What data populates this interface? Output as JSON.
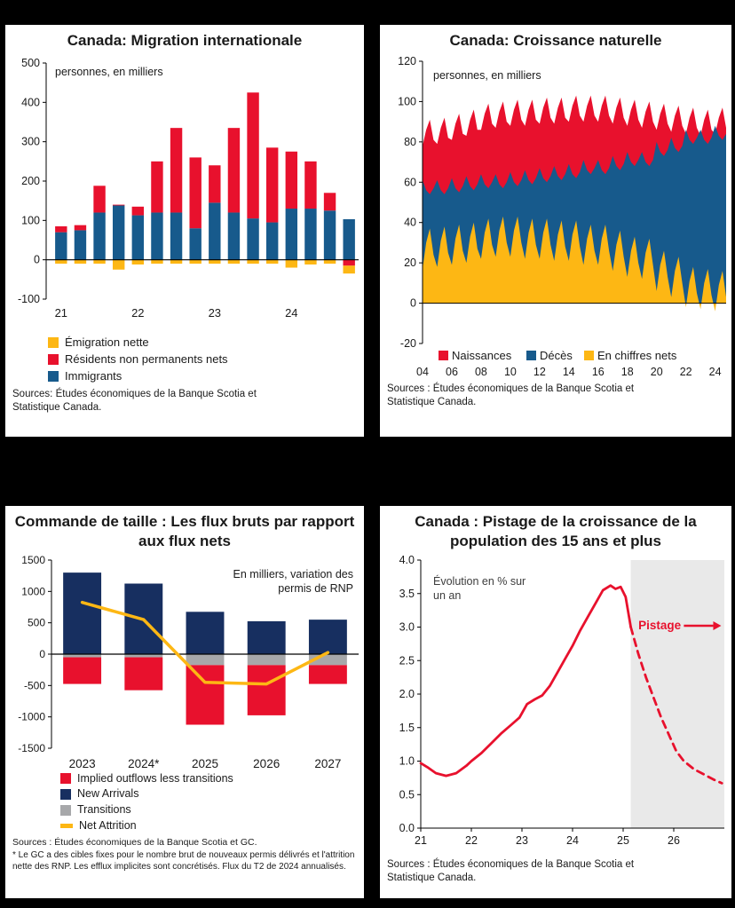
{
  "colors": {
    "background": "#000000",
    "panel": "#ffffff",
    "text": "#1a1a1a",
    "red": "#e8112d",
    "blue": "#175a8c",
    "navy": "#172f60",
    "yellow": "#fdb714",
    "gray": "#a7a8aa",
    "shade": "#e9e9e9"
  },
  "chart_data": [
    {
      "type": "bar",
      "title": "Canada: Migration internationale",
      "unit_label": "personnes, en milliers",
      "ylim": [
        -100,
        500
      ],
      "yticks": [
        500,
        400,
        300,
        200,
        100,
        0,
        -100
      ],
      "xtick_labels": [
        "21",
        "22",
        "23",
        "24"
      ],
      "series": [
        {
          "name": "Immigrants",
          "color": "blue",
          "values": [
            70,
            75,
            120,
            138,
            113,
            120,
            120,
            80,
            145,
            120,
            105,
            95,
            130,
            130,
            125,
            103
          ]
        },
        {
          "name": "Résidents non permanents nets",
          "color": "red",
          "values": [
            15,
            13,
            68,
            2,
            22,
            130,
            215,
            180,
            95,
            215,
            320,
            190,
            145,
            120,
            45,
            -15
          ]
        },
        {
          "name": "Émigration nette",
          "color": "yellow",
          "values": [
            -10,
            -10,
            -10,
            -25,
            -12,
            -10,
            -10,
            -10,
            -10,
            -10,
            -10,
            -10,
            -20,
            -12,
            -10,
            -20
          ]
        }
      ],
      "legend": [
        {
          "label": "Émigration nette",
          "color": "yellow",
          "shape": "square"
        },
        {
          "label": "Résidents non permanents nets",
          "color": "red",
          "shape": "square"
        },
        {
          "label": "Immigrants",
          "color": "blue",
          "shape": "square"
        }
      ],
      "sources": "Sources: Études économiques de la Banque Scotia et Statistique Canada."
    },
    {
      "type": "area",
      "title": "Canada: Croissance naturelle",
      "unit_label": "personnes, en milliers",
      "ylim": [
        -20,
        120
      ],
      "yticks": [
        120,
        100,
        80,
        60,
        40,
        20,
        0,
        -20
      ],
      "x_start": 2004,
      "x_step": 0.25,
      "xtick_years": [
        2004,
        2006,
        2008,
        2010,
        2012,
        2014,
        2016,
        2018,
        2020,
        2022,
        2024
      ],
      "xtick_labels": [
        "04",
        "06",
        "08",
        "10",
        "12",
        "14",
        "16",
        "18",
        "20",
        "22",
        "24"
      ],
      "series": [
        {
          "name": "Naissances",
          "color": "red",
          "values": [
            78,
            86,
            91,
            81,
            79,
            87,
            92,
            82,
            81,
            89,
            94,
            84,
            83,
            91,
            96,
            86,
            86,
            94,
            99,
            89,
            87,
            95,
            100,
            90,
            88,
            96,
            101,
            91,
            88,
            96,
            101,
            91,
            89,
            97,
            102,
            92,
            89,
            97,
            102,
            92,
            90,
            98,
            103,
            93,
            90,
            98,
            103,
            93,
            90,
            98,
            103,
            93,
            89,
            97,
            102,
            92,
            88,
            96,
            101,
            91,
            87,
            95,
            100,
            90,
            86,
            94,
            99,
            89,
            85,
            93,
            98,
            88,
            84,
            92,
            97,
            87,
            83,
            91,
            96,
            86,
            84,
            92,
            97,
            87
          ]
        },
        {
          "name": "Décès",
          "color": "blue",
          "values": [
            61,
            56,
            54,
            57,
            61,
            56,
            54,
            57,
            62,
            57,
            55,
            58,
            63,
            58,
            56,
            59,
            64,
            59,
            57,
            60,
            64,
            59,
            57,
            60,
            65,
            60,
            58,
            61,
            66,
            61,
            59,
            62,
            67,
            62,
            60,
            63,
            68,
            63,
            61,
            64,
            69,
            64,
            62,
            65,
            71,
            66,
            64,
            67,
            71,
            66,
            64,
            67,
            73,
            68,
            66,
            69,
            75,
            70,
            68,
            71,
            75,
            70,
            68,
            71,
            80,
            75,
            73,
            76,
            82,
            77,
            75,
            78,
            86,
            81,
            79,
            82,
            86,
            81,
            79,
            82,
            88,
            83,
            81,
            84
          ]
        },
        {
          "name": "En chiffres nets",
          "color": "yellow",
          "values": [
            17,
            30,
            37,
            24,
            18,
            31,
            38,
            25,
            19,
            32,
            39,
            26,
            20,
            33,
            40,
            27,
            22,
            35,
            42,
            29,
            23,
            36,
            43,
            30,
            23,
            36,
            43,
            30,
            22,
            35,
            42,
            29,
            22,
            35,
            42,
            29,
            21,
            34,
            41,
            28,
            21,
            34,
            41,
            28,
            19,
            32,
            39,
            26,
            19,
            32,
            39,
            26,
            16,
            29,
            36,
            23,
            13,
            26,
            33,
            20,
            12,
            25,
            32,
            19,
            6,
            19,
            26,
            13,
            3,
            16,
            23,
            10,
            -2,
            11,
            18,
            5,
            -3,
            10,
            17,
            4,
            -4,
            9,
            16,
            3
          ]
        }
      ],
      "sources": "Sources : Études économiques de la Banque Scotia et Statistique Canada."
    },
    {
      "type": "bar-line",
      "title": "Commande de taille : Les flux bruts par rapport aux flux nets",
      "annotation": [
        "En milliers, variation des",
        "permis de RNP"
      ],
      "ylim": [
        -1500,
        1500
      ],
      "yticks": [
        1500,
        1000,
        500,
        0,
        -500,
        -1000,
        -1500
      ],
      "categories": [
        "2023",
        "2024*",
        "2025",
        "2026",
        "2027"
      ],
      "series": [
        {
          "name": "New Arrivals",
          "color": "navy",
          "values": [
            1300,
            1125,
            675,
            525,
            550
          ]
        },
        {
          "name": "Transitions",
          "color": "gray",
          "values": [
            -50,
            -50,
            -175,
            -175,
            -175
          ]
        },
        {
          "name": "Implied outflows less transitions",
          "color": "red",
          "values": [
            -425,
            -525,
            -950,
            -800,
            -300
          ]
        }
      ],
      "line": {
        "name": "Net Attrition",
        "color": "yellow",
        "values": [
          825,
          550,
          -450,
          -475,
          25
        ]
      },
      "legend": [
        {
          "label": "Implied outflows less transitions",
          "color": "red",
          "shape": "square"
        },
        {
          "label": "New Arrivals",
          "color": "navy",
          "shape": "square"
        },
        {
          "label": "Transitions",
          "color": "gray",
          "shape": "square"
        },
        {
          "label": "Net Attrition",
          "color": "yellow",
          "shape": "line"
        }
      ],
      "sources": "Sources : Études économiques de la Banque Scotia et GC.",
      "footnote": "* Le GC a des cibles fixes pour le nombre brut de nouveaux permis délivrés et l'attrition nette des RNP. Les efflux implicites sont concrétisés. Flux du T2 de 2024 annualisés."
    },
    {
      "type": "line",
      "title": "Canada : Pistage de la croissance de la population des 15 ans et plus",
      "annotation": [
        "Évolution en % sur",
        "un an"
      ],
      "ylim": [
        0,
        4
      ],
      "ytick_labels": [
        "4.0",
        "3.5",
        "3.0",
        "2.5",
        "2.0",
        "1.5",
        "1.0",
        "0.5",
        "0.0"
      ],
      "xlim": [
        2021,
        2027
      ],
      "xtick_labels": [
        "21",
        "22",
        "23",
        "24",
        "25",
        "26"
      ],
      "forecast_start": 2025.15,
      "forecast_label": "Pistage",
      "solid": [
        [
          2021.0,
          0.97
        ],
        [
          2021.15,
          0.9
        ],
        [
          2021.3,
          0.82
        ],
        [
          2021.5,
          0.78
        ],
        [
          2021.7,
          0.82
        ],
        [
          2021.9,
          0.93
        ],
        [
          2022.0,
          1.0
        ],
        [
          2022.2,
          1.12
        ],
        [
          2022.4,
          1.27
        ],
        [
          2022.6,
          1.42
        ],
        [
          2022.8,
          1.55
        ],
        [
          2022.95,
          1.65
        ],
        [
          2023.1,
          1.85
        ],
        [
          2023.25,
          1.92
        ],
        [
          2023.4,
          1.98
        ],
        [
          2023.55,
          2.12
        ],
        [
          2023.7,
          2.32
        ],
        [
          2023.85,
          2.52
        ],
        [
          2024.0,
          2.72
        ],
        [
          2024.15,
          2.95
        ],
        [
          2024.3,
          3.15
        ],
        [
          2024.45,
          3.35
        ],
        [
          2024.6,
          3.55
        ],
        [
          2024.75,
          3.62
        ],
        [
          2024.85,
          3.57
        ],
        [
          2024.95,
          3.6
        ],
        [
          2025.05,
          3.45
        ],
        [
          2025.15,
          3.0
        ]
      ],
      "dashed": [
        [
          2025.15,
          3.0
        ],
        [
          2025.3,
          2.6
        ],
        [
          2025.45,
          2.25
        ],
        [
          2025.6,
          1.95
        ],
        [
          2025.75,
          1.65
        ],
        [
          2025.9,
          1.4
        ],
        [
          2026.05,
          1.15
        ],
        [
          2026.2,
          1.0
        ],
        [
          2026.4,
          0.88
        ],
        [
          2026.6,
          0.8
        ],
        [
          2026.8,
          0.72
        ],
        [
          2026.95,
          0.67
        ]
      ],
      "sources": "Sources : Études économiques de la Banque Scotia et Statistique Canada."
    }
  ]
}
